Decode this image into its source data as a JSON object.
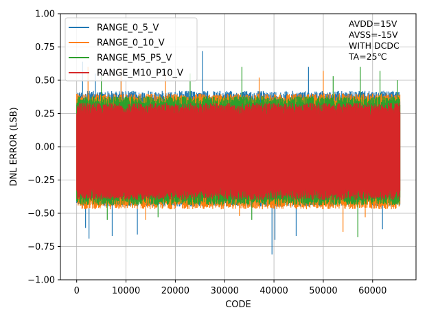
{
  "chart_data": {
    "type": "line",
    "title": "",
    "xlabel": "CODE",
    "ylabel": "DNL ERROR (LSB)",
    "xlim": [
      -3300,
      68800
    ],
    "ylim": [
      -1.0,
      1.0
    ],
    "xticks": [
      0,
      10000,
      20000,
      30000,
      40000,
      50000,
      60000
    ],
    "xtick_labels": [
      "0",
      "10000",
      "20000",
      "30000",
      "40000",
      "50000",
      "60000"
    ],
    "yticks": [
      -1.0,
      -0.75,
      -0.5,
      -0.25,
      0.0,
      0.25,
      0.5,
      0.75,
      1.0
    ],
    "ytick_labels": [
      "−1.00",
      "−0.75",
      "−0.50",
      "−0.25",
      "0.00",
      "0.25",
      "0.50",
      "0.75",
      "1.00"
    ],
    "grid": true,
    "legend_position": "top-left",
    "annotation": [
      "AVDD=15V",
      "AVSS=-15V",
      "WITH DCDC",
      "TA=25℃"
    ],
    "x_range": [
      0,
      65535
    ],
    "series": [
      {
        "name": "RANGE_0_5_V",
        "color": "#1f77b4",
        "band": [
          -0.45,
          0.42
        ],
        "peaks": [
          [
            1200,
            0.64
          ],
          [
            3800,
            0.55
          ],
          [
            9000,
            0.57
          ],
          [
            25500,
            0.72
          ],
          [
            47000,
            0.6
          ]
        ],
        "troughs": [
          [
            1800,
            -0.61
          ],
          [
            2500,
            -0.69
          ],
          [
            7200,
            -0.67
          ],
          [
            12300,
            -0.66
          ],
          [
            39600,
            -0.81
          ],
          [
            40200,
            -0.7
          ],
          [
            44500,
            -0.67
          ],
          [
            62000,
            -0.62
          ]
        ]
      },
      {
        "name": "RANGE_0_10_V",
        "color": "#ff7f0e",
        "band": [
          -0.47,
          0.4
        ],
        "peaks": [
          [
            2300,
            0.6
          ],
          [
            9000,
            0.58
          ],
          [
            18000,
            0.55
          ],
          [
            37000,
            0.52
          ],
          [
            50000,
            0.57
          ]
        ],
        "troughs": [
          [
            14000,
            -0.55
          ],
          [
            33000,
            -0.52
          ],
          [
            54000,
            -0.64
          ],
          [
            58500,
            -0.53
          ]
        ]
      },
      {
        "name": "RANGE_M5_P5_V",
        "color": "#2ca02c",
        "band": [
          -0.44,
          0.38
        ],
        "peaks": [
          [
            5000,
            0.53
          ],
          [
            23000,
            0.55
          ],
          [
            33500,
            0.6
          ],
          [
            52000,
            0.53
          ],
          [
            57500,
            0.6
          ],
          [
            61500,
            0.57
          ],
          [
            65000,
            0.5
          ]
        ],
        "troughs": [
          [
            6200,
            -0.55
          ],
          [
            16500,
            -0.53
          ],
          [
            35500,
            -0.55
          ],
          [
            57000,
            -0.68
          ]
        ]
      },
      {
        "name": "RANGE_M10_P10_V",
        "color": "#d62728",
        "band": [
          -0.4,
          0.33
        ],
        "peaks": [],
        "troughs": []
      }
    ]
  }
}
